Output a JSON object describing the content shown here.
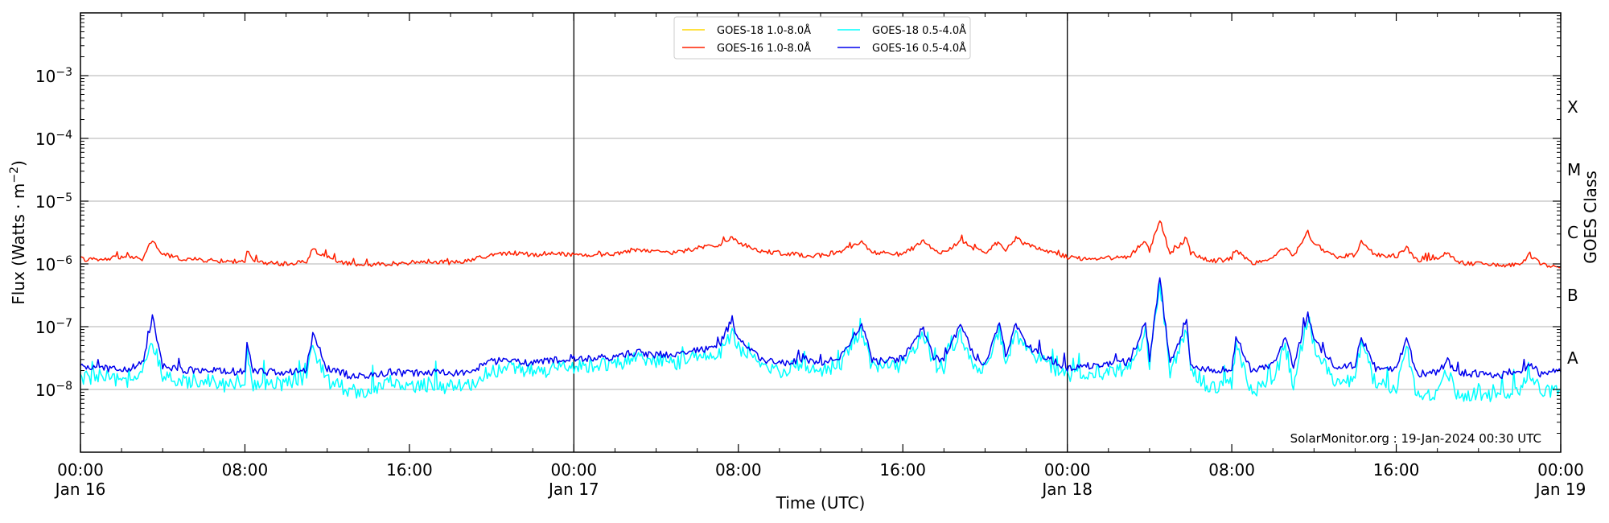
{
  "chart_data": {
    "type": "line",
    "xlabel": "Time (UTC)",
    "ylabel_prefix": "Flux (Watts · m",
    "ylabel_exp": "−2",
    "ylabel_suffix": ")",
    "right_axis_label": "GOES Class",
    "credit": "SolarMonitor.org : 19-Jan-2024 00:30 UTC",
    "y_scale": "log",
    "ylim": [
      1e-09,
      0.01
    ],
    "xlim_hours": [
      0,
      72
    ],
    "grid": "horizontal at y decades",
    "legend_position": "top-center",
    "y_ticks": [
      {
        "value": 1e-08,
        "base": "10",
        "exp": "−8"
      },
      {
        "value": 1e-07,
        "base": "10",
        "exp": "−7"
      },
      {
        "value": 1e-06,
        "base": "10",
        "exp": "−6"
      },
      {
        "value": 1e-05,
        "base": "10",
        "exp": "−5"
      },
      {
        "value": 0.0001,
        "base": "10",
        "exp": "−4"
      },
      {
        "value": 0.001,
        "base": "10",
        "exp": "−3"
      }
    ],
    "x_ticks": [
      {
        "hour": 0,
        "time": "00:00",
        "date": "Jan 16"
      },
      {
        "hour": 8,
        "time": "08:00",
        "date": ""
      },
      {
        "hour": 16,
        "time": "16:00",
        "date": ""
      },
      {
        "hour": 24,
        "time": "00:00",
        "date": "Jan 17"
      },
      {
        "hour": 32,
        "time": "08:00",
        "date": ""
      },
      {
        "hour": 40,
        "time": "16:00",
        "date": ""
      },
      {
        "hour": 48,
        "time": "00:00",
        "date": "Jan 18"
      },
      {
        "hour": 56,
        "time": "08:00",
        "date": ""
      },
      {
        "hour": 64,
        "time": "16:00",
        "date": ""
      },
      {
        "hour": 72,
        "time": "00:00",
        "date": "Jan 19"
      }
    ],
    "day_boundaries_hours": [
      24,
      48
    ],
    "goes_classes": [
      {
        "label": "A",
        "center": 3.16e-08
      },
      {
        "label": "B",
        "center": 3.16e-07
      },
      {
        "label": "C",
        "center": 3.16e-06
      },
      {
        "label": "M",
        "center": 3.16e-05
      },
      {
        "label": "X",
        "center": 0.000316
      }
    ],
    "series": [
      {
        "name": "GOES-18 1.0-8.0Å",
        "color": "#FFD700",
        "points": []
      },
      {
        "name": "GOES-16 1.0-8.0Å",
        "color": "#FF2000",
        "points": [
          [
            0,
            1.2e-06
          ],
          [
            1,
            1.15e-06
          ],
          [
            2,
            1.3e-06
          ],
          [
            3,
            1.2e-06
          ],
          [
            3.5,
            2.4e-06
          ],
          [
            4,
            1.4e-06
          ],
          [
            5,
            1.2e-06
          ],
          [
            6,
            1.15e-06
          ],
          [
            7,
            1.1e-06
          ],
          [
            8,
            1.1e-06
          ],
          [
            8.1,
            1.6e-06
          ],
          [
            8.4,
            1.1e-06
          ],
          [
            9,
            1.05e-06
          ],
          [
            10,
            1e-06
          ],
          [
            11,
            1.1e-06
          ],
          [
            11.3,
            1.7e-06
          ],
          [
            12,
            1.3e-06
          ],
          [
            13,
            1e-06
          ],
          [
            14,
            9.5e-07
          ],
          [
            15,
            1e-06
          ],
          [
            16,
            1.05e-06
          ],
          [
            17,
            1.1e-06
          ],
          [
            18,
            1.05e-06
          ],
          [
            19,
            1.15e-06
          ],
          [
            20,
            1.4e-06
          ],
          [
            21,
            1.5e-06
          ],
          [
            22,
            1.4e-06
          ],
          [
            23,
            1.5e-06
          ],
          [
            24,
            1.4e-06
          ],
          [
            25,
            1.4e-06
          ],
          [
            26,
            1.45e-06
          ],
          [
            27,
            1.7e-06
          ],
          [
            28,
            1.6e-06
          ],
          [
            29,
            1.5e-06
          ],
          [
            30,
            1.8e-06
          ],
          [
            31,
            2e-06
          ],
          [
            31.7,
            2.6e-06
          ],
          [
            32,
            2.2e-06
          ],
          [
            33,
            1.6e-06
          ],
          [
            34,
            1.5e-06
          ],
          [
            35,
            1.4e-06
          ],
          [
            36,
            1.35e-06
          ],
          [
            37,
            1.6e-06
          ],
          [
            38,
            2.2e-06
          ],
          [
            38.5,
            1.5e-06
          ],
          [
            39,
            1.5e-06
          ],
          [
            40,
            1.4e-06
          ],
          [
            41,
            2.3e-06
          ],
          [
            41.5,
            1.6e-06
          ],
          [
            42,
            1.5e-06
          ],
          [
            42.8,
            2.4e-06
          ],
          [
            43.5,
            1.7e-06
          ],
          [
            44,
            1.5e-06
          ],
          [
            44.7,
            2.3e-06
          ],
          [
            45,
            1.6e-06
          ],
          [
            45.5,
            2.6e-06
          ],
          [
            46,
            2e-06
          ],
          [
            47,
            1.6e-06
          ],
          [
            48,
            1.3e-06
          ],
          [
            49,
            1.2e-06
          ],
          [
            50,
            1.25e-06
          ],
          [
            51,
            1.3e-06
          ],
          [
            51.8,
            2.4e-06
          ],
          [
            52,
            1.6e-06
          ],
          [
            52.5,
            5.2e-06
          ],
          [
            53,
            1.4e-06
          ],
          [
            53.8,
            2.6e-06
          ],
          [
            54,
            1.5e-06
          ],
          [
            55,
            1.1e-06
          ],
          [
            56,
            1.2e-06
          ],
          [
            56.2,
            1.7e-06
          ],
          [
            57,
            1e-06
          ],
          [
            58,
            1.3e-06
          ],
          [
            58.6,
            1.9e-06
          ],
          [
            59,
            1.3e-06
          ],
          [
            59.7,
            3.2e-06
          ],
          [
            60,
            2.1e-06
          ],
          [
            61,
            1.3e-06
          ],
          [
            62,
            1.4e-06
          ],
          [
            62.3,
            2.2e-06
          ],
          [
            63,
            1.4e-06
          ],
          [
            64,
            1.3e-06
          ],
          [
            64.5,
            1.8e-06
          ],
          [
            65,
            1.15e-06
          ],
          [
            66,
            1.2e-06
          ],
          [
            66.5,
            1.5e-06
          ],
          [
            67,
            1.05e-06
          ],
          [
            68,
            1e-06
          ],
          [
            69,
            9.5e-07
          ],
          [
            70,
            9.5e-07
          ],
          [
            70.5,
            1.35e-06
          ],
          [
            71,
            1e-06
          ],
          [
            72,
            9e-07
          ]
        ]
      },
      {
        "name": "GOES-18 0.5-4.0Å",
        "color": "#00FFFF",
        "points": [
          [
            0,
            1.5e-08
          ],
          [
            1,
            1.6e-08
          ],
          [
            2,
            1.3e-08
          ],
          [
            3,
            1.8e-08
          ],
          [
            3.5,
            5.5e-08
          ],
          [
            4,
            1.5e-08
          ],
          [
            5,
            1.3e-08
          ],
          [
            6,
            1.5e-08
          ],
          [
            7,
            1.2e-08
          ],
          [
            8,
            1.4e-08
          ],
          [
            8.1,
            4e-08
          ],
          [
            8.4,
            1.2e-08
          ],
          [
            9,
            1.3e-08
          ],
          [
            10,
            1.2e-08
          ],
          [
            11,
            1.5e-08
          ],
          [
            11.3,
            5e-08
          ],
          [
            12,
            1.4e-08
          ],
          [
            13,
            1e-08
          ],
          [
            14,
            9e-09
          ],
          [
            15,
            1.3e-08
          ],
          [
            16,
            1.1e-08
          ],
          [
            17,
            1.2e-08
          ],
          [
            18,
            1.1e-08
          ],
          [
            19,
            1.2e-08
          ],
          [
            20,
            2e-08
          ],
          [
            21,
            2.2e-08
          ],
          [
            22,
            1.9e-08
          ],
          [
            23,
            2.1e-08
          ],
          [
            24,
            2.2e-08
          ],
          [
            25,
            2.5e-08
          ],
          [
            26,
            2.6e-08
          ],
          [
            27,
            3e-08
          ],
          [
            28,
            2.8e-08
          ],
          [
            29,
            2.7e-08
          ],
          [
            30,
            3.3e-08
          ],
          [
            31,
            3.5e-08
          ],
          [
            31.7,
            7.5e-08
          ],
          [
            32,
            4.5e-08
          ],
          [
            33,
            2.5e-08
          ],
          [
            34,
            2e-08
          ],
          [
            35,
            2.4e-08
          ],
          [
            36,
            2e-08
          ],
          [
            37,
            2.6e-08
          ],
          [
            38,
            8e-08
          ],
          [
            38.5,
            2.4e-08
          ],
          [
            39,
            2.2e-08
          ],
          [
            40,
            2.5e-08
          ],
          [
            41,
            7e-08
          ],
          [
            41.5,
            2.5e-08
          ],
          [
            42,
            2.3e-08
          ],
          [
            42.8,
            7.5e-08
          ],
          [
            43.5,
            2.5e-08
          ],
          [
            44,
            2e-08
          ],
          [
            44.7,
            8e-08
          ],
          [
            45,
            2.6e-08
          ],
          [
            45.5,
            8.5e-08
          ],
          [
            46,
            4e-08
          ],
          [
            47,
            2.5e-08
          ],
          [
            48,
            1.6e-08
          ],
          [
            49,
            1.8e-08
          ],
          [
            50,
            1.9e-08
          ],
          [
            51,
            2.2e-08
          ],
          [
            51.8,
            8e-08
          ],
          [
            52,
            2.5e-08
          ],
          [
            52.5,
            5.5e-07
          ],
          [
            53,
            2e-08
          ],
          [
            53.8,
            9e-08
          ],
          [
            54,
            2e-08
          ],
          [
            55,
            1e-08
          ],
          [
            56,
            1.2e-08
          ],
          [
            56.2,
            5e-08
          ],
          [
            57,
            9e-09
          ],
          [
            58,
            1.4e-08
          ],
          [
            58.6,
            5e-08
          ],
          [
            59,
            1.2e-08
          ],
          [
            59.7,
            1.4e-07
          ],
          [
            60,
            5e-08
          ],
          [
            61,
            1.3e-08
          ],
          [
            62,
            1.5e-08
          ],
          [
            62.3,
            5.5e-08
          ],
          [
            63,
            1.2e-08
          ],
          [
            64,
            1e-08
          ],
          [
            64.5,
            4.5e-08
          ],
          [
            65,
            8e-09
          ],
          [
            66,
            9e-09
          ],
          [
            66.5,
            2e-08
          ],
          [
            67,
            8e-09
          ],
          [
            68,
            9e-09
          ],
          [
            69,
            8e-09
          ],
          [
            70,
            9e-09
          ],
          [
            70.5,
            2e-08
          ],
          [
            71,
            9e-09
          ],
          [
            72,
            1e-08
          ]
        ]
      },
      {
        "name": "GOES-16 0.5-4.0Å",
        "color": "#0000EE",
        "points": [
          [
            0,
            2.2e-08
          ],
          [
            1,
            2.3e-08
          ],
          [
            2,
            2e-08
          ],
          [
            3,
            2.5e-08
          ],
          [
            3.5,
            1.4e-07
          ],
          [
            4,
            2.3e-08
          ],
          [
            5,
            2e-08
          ],
          [
            6,
            2.1e-08
          ],
          [
            7,
            1.9e-08
          ],
          [
            8,
            2e-08
          ],
          [
            8.1,
            6e-08
          ],
          [
            8.4,
            1.9e-08
          ],
          [
            9,
            1.9e-08
          ],
          [
            10,
            1.8e-08
          ],
          [
            11,
            2e-08
          ],
          [
            11.3,
            8e-08
          ],
          [
            12,
            2.2e-08
          ],
          [
            13,
            1.7e-08
          ],
          [
            14,
            1.6e-08
          ],
          [
            15,
            1.9e-08
          ],
          [
            16,
            1.8e-08
          ],
          [
            17,
            1.9e-08
          ],
          [
            18,
            1.8e-08
          ],
          [
            19,
            1.9e-08
          ],
          [
            20,
            2.8e-08
          ],
          [
            21,
            3e-08
          ],
          [
            22,
            2.6e-08
          ],
          [
            23,
            2.9e-08
          ],
          [
            24,
            3e-08
          ],
          [
            25,
            3.1e-08
          ],
          [
            26,
            3.3e-08
          ],
          [
            27,
            3.9e-08
          ],
          [
            28,
            3.6e-08
          ],
          [
            29,
            3.5e-08
          ],
          [
            30,
            4.3e-08
          ],
          [
            31,
            4.6e-08
          ],
          [
            31.7,
            1.3e-07
          ],
          [
            32,
            6e-08
          ],
          [
            33,
            3.2e-08
          ],
          [
            34,
            2.6e-08
          ],
          [
            35,
            2.9e-08
          ],
          [
            36,
            2.6e-08
          ],
          [
            37,
            3.3e-08
          ],
          [
            38,
            1.1e-07
          ],
          [
            38.5,
            3e-08
          ],
          [
            39,
            2.8e-08
          ],
          [
            40,
            3.1e-08
          ],
          [
            41,
            9.5e-08
          ],
          [
            41.5,
            3.2e-08
          ],
          [
            42,
            2.9e-08
          ],
          [
            42.8,
            1.1e-07
          ],
          [
            43.5,
            3.2e-08
          ],
          [
            44,
            2.6e-08
          ],
          [
            44.7,
            1.2e-07
          ],
          [
            45,
            3.4e-08
          ],
          [
            45.5,
            1.15e-07
          ],
          [
            46,
            5e-08
          ],
          [
            47,
            3.1e-08
          ],
          [
            48,
            2.2e-08
          ],
          [
            49,
            2.4e-08
          ],
          [
            50,
            2.5e-08
          ],
          [
            51,
            2.8e-08
          ],
          [
            51.8,
            1.1e-07
          ],
          [
            52,
            3.1e-08
          ],
          [
            52.5,
            6.3e-07
          ],
          [
            53,
            2.5e-08
          ],
          [
            53.8,
            1.2e-07
          ],
          [
            54,
            2.5e-08
          ],
          [
            55,
            2e-08
          ],
          [
            56,
            2.1e-08
          ],
          [
            56.2,
            7e-08
          ],
          [
            57,
            1.9e-08
          ],
          [
            58,
            2.4e-08
          ],
          [
            58.6,
            6.5e-08
          ],
          [
            59,
            2.2e-08
          ],
          [
            59.7,
            1.7e-07
          ],
          [
            60,
            6e-08
          ],
          [
            61,
            2.3e-08
          ],
          [
            62,
            2.4e-08
          ],
          [
            62.3,
            7e-08
          ],
          [
            63,
            2.2e-08
          ],
          [
            64,
            2e-08
          ],
          [
            64.5,
            6.5e-08
          ],
          [
            65,
            1.8e-08
          ],
          [
            66,
            1.9e-08
          ],
          [
            66.5,
            2.8e-08
          ],
          [
            67,
            1.8e-08
          ],
          [
            68,
            1.8e-08
          ],
          [
            69,
            1.7e-08
          ],
          [
            70,
            1.8e-08
          ],
          [
            70.5,
            2.6e-08
          ],
          [
            71,
            1.8e-08
          ],
          [
            72,
            1.9e-08
          ]
        ]
      }
    ]
  }
}
